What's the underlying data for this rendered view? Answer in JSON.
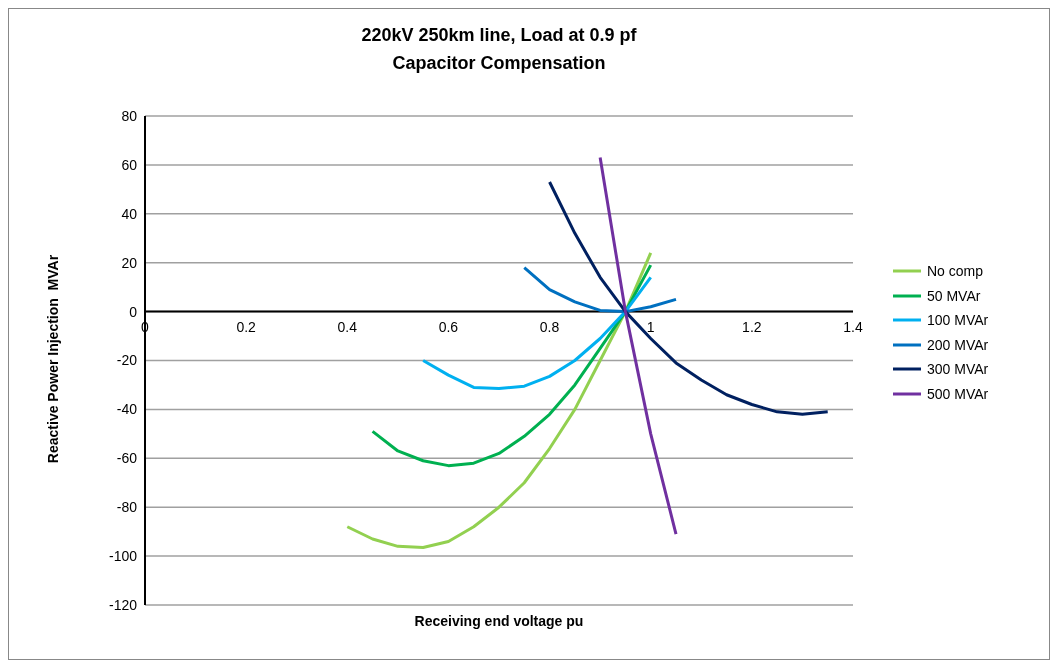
{
  "chart_data": {
    "type": "line",
    "title": "220kV 250km line, Load at 0.9 pf\nCapacitor Compensation",
    "xlabel": "Receiving end voltage  pu",
    "ylabel": "Reactive Power Injection  MVAr",
    "xlim": [
      0,
      1.4
    ],
    "xticks": [
      0,
      0.2,
      0.4,
      0.6,
      0.8,
      1,
      1.2,
      1.4
    ],
    "ylim": [
      -120,
      80
    ],
    "yticks": [
      -120,
      -100,
      -80,
      -60,
      -40,
      -20,
      0,
      20,
      40,
      60,
      80
    ],
    "grid": "y",
    "legend": "right",
    "marker": "none",
    "line_style": "solid",
    "series": [
      {
        "name": "No comp",
        "color": "#92d050",
        "x": [
          0.4,
          0.45,
          0.5,
          0.55,
          0.6,
          0.65,
          0.7,
          0.75,
          0.8,
          0.85,
          0.9,
          0.95,
          1.0
        ],
        "values": [
          -88,
          -93,
          -96,
          -96.5,
          -94,
          -88,
          -80,
          -70,
          -56,
          -40,
          -20,
          0,
          24
        ]
      },
      {
        "name": "50 MVAr",
        "color": "#00b050",
        "x": [
          0.45,
          0.5,
          0.55,
          0.6,
          0.65,
          0.7,
          0.75,
          0.8,
          0.85,
          0.9,
          0.95,
          1.0
        ],
        "values": [
          -49,
          -57,
          -61,
          -63,
          -62,
          -58,
          -51,
          -42,
          -30,
          -15,
          0,
          19
        ]
      },
      {
        "name": "100 MVAr",
        "color": "#00b0f0",
        "x": [
          0.55,
          0.6,
          0.65,
          0.7,
          0.75,
          0.8,
          0.85,
          0.9,
          0.95,
          1.0
        ],
        "values": [
          -20,
          -26,
          -31,
          -31.5,
          -30.5,
          -26.5,
          -20,
          -11,
          0,
          14
        ]
      },
      {
        "name": "200 MVAr",
        "color": "#0070c0",
        "x": [
          0.75,
          0.8,
          0.85,
          0.9,
          0.95,
          1.0,
          1.05
        ],
        "values": [
          18,
          9,
          4,
          0.5,
          0,
          2,
          5
        ]
      },
      {
        "name": "300 MVAr",
        "color": "#002060",
        "x": [
          0.8,
          0.85,
          0.9,
          0.95,
          1.0,
          1.05,
          1.1,
          1.15,
          1.2,
          1.25,
          1.3,
          1.35
        ],
        "values": [
          53,
          32,
          14,
          0,
          -11,
          -21,
          -28,
          -34,
          -38,
          -41,
          -42,
          -41
        ]
      },
      {
        "name": "500 MVAr",
        "color": "#7030a0",
        "x": [
          0.9,
          0.95,
          1.0,
          1.05
        ],
        "values": [
          63,
          0,
          -50,
          -91
        ]
      }
    ]
  }
}
